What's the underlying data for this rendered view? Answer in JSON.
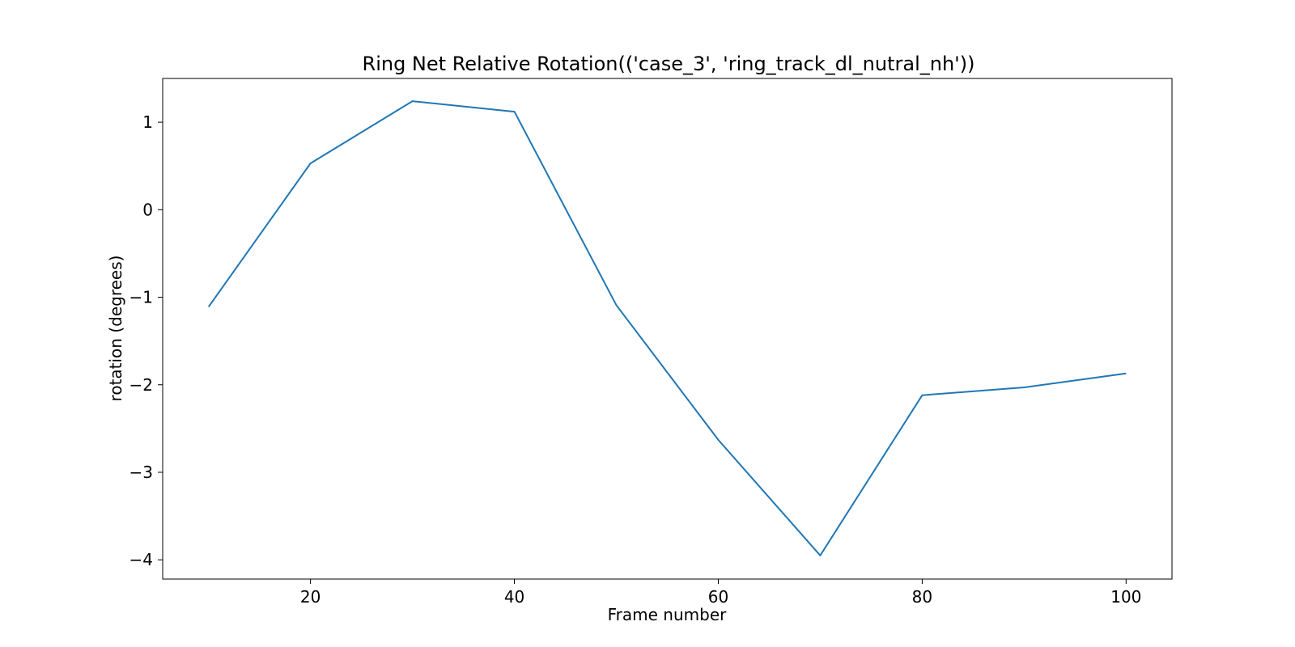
{
  "chart_data": {
    "type": "line",
    "title": "Ring Net Relative Rotation(('case_3', 'ring_track_dl_nutral_nh'))",
    "xlabel": "Frame number",
    "ylabel": "rotation (degrees)",
    "xlim": [
      5.5,
      104.5
    ],
    "ylim": [
      -4.22,
      1.5
    ],
    "xticks": [
      20,
      40,
      60,
      80,
      100
    ],
    "xtick_labels": [
      "20",
      "40",
      "60",
      "80",
      "100"
    ],
    "yticks": [
      1,
      0,
      -1,
      -2,
      -3,
      -4
    ],
    "ytick_labels": [
      "1",
      "0",
      "−1",
      "−2",
      "−3",
      "−4"
    ],
    "grid": false,
    "legend": "none",
    "series": [
      {
        "color": "#1f77b4",
        "x": [
          10,
          20,
          30,
          40,
          50,
          60,
          70,
          80,
          90,
          100
        ],
        "y": [
          -1.11,
          0.53,
          1.24,
          1.12,
          -1.09,
          -2.63,
          -3.95,
          -2.12,
          -2.03,
          -1.87
        ]
      }
    ]
  }
}
